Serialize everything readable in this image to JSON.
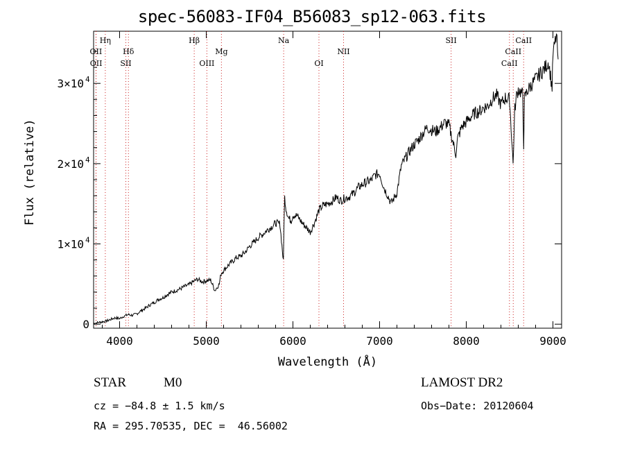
{
  "chart_data": {
    "type": "line",
    "title": "spec-56083-IF04_B56083_sp12-063.fits",
    "xlabel": "Wavelength (Å)",
    "ylabel": "Flux (relative)",
    "xlim": [
      3700,
      9100
    ],
    "ylim": [
      -500,
      36500
    ],
    "x_ticks": [
      4000,
      5000,
      6000,
      7000,
      8000,
      9000
    ],
    "x_tick_labels": [
      "4000",
      "5000",
      "6000",
      "7000",
      "8000",
      "9000"
    ],
    "y_ticks": [
      0,
      10000,
      20000,
      30000
    ],
    "y_tick_labels": [
      {
        "mant": "0",
        "exp": ""
      },
      {
        "mant": "1×10",
        "exp": "4"
      },
      {
        "mant": "2×10",
        "exp": "4"
      },
      {
        "mant": "3×10",
        "exp": "4"
      }
    ],
    "grid": false,
    "series": [
      {
        "x": [
          3700,
          3750,
          3800,
          3850,
          3900,
          3950,
          4000,
          4050,
          4100,
          4150,
          4200,
          4250,
          4300,
          4350,
          4400,
          4450,
          4500,
          4550,
          4600,
          4650,
          4700,
          4750,
          4800,
          4850,
          4900,
          4950,
          5000,
          5050,
          5100,
          5150,
          5170,
          5200,
          5250,
          5300,
          5350,
          5400,
          5450,
          5500,
          5550,
          5600,
          5650,
          5700,
          5750,
          5800,
          5850,
          5890,
          5895,
          5905,
          5920,
          5950,
          5980,
          6000,
          6050,
          6100,
          6150,
          6200,
          6250,
          6300,
          6350,
          6400,
          6450,
          6500,
          6550,
          6600,
          6650,
          6700,
          6750,
          6800,
          6850,
          6900,
          6950,
          7000,
          7050,
          7100,
          7130,
          7150,
          7200,
          7250,
          7300,
          7350,
          7400,
          7450,
          7500,
          7550,
          7600,
          7650,
          7700,
          7750,
          7800,
          7850,
          7880,
          7900,
          7950,
          8000,
          8050,
          8100,
          8150,
          8200,
          8250,
          8300,
          8350,
          8400,
          8450,
          8500,
          8540,
          8560,
          8580,
          8600,
          8650,
          8662,
          8670,
          8700,
          8750,
          8800,
          8850,
          8900,
          8950,
          8990,
          9000,
          9020,
          9040,
          9060
        ],
        "y": [
          100,
          200,
          300,
          400,
          600,
          800,
          700,
          1000,
          1200,
          1100,
          1300,
          1700,
          2000,
          2400,
          2700,
          3100,
          3300,
          3700,
          4000,
          4200,
          4400,
          4700,
          4900,
          5300,
          5600,
          5300,
          5400,
          5500,
          4200,
          5000,
          6300,
          6700,
          7300,
          7800,
          8300,
          8500,
          9000,
          9700,
          10200,
          10800,
          11200,
          11700,
          12100,
          12600,
          12500,
          7800,
          11800,
          15800,
          14400,
          13200,
          12900,
          13600,
          13500,
          12700,
          12100,
          11500,
          12700,
          14200,
          14800,
          15000,
          15300,
          15800,
          15400,
          15700,
          15900,
          16300,
          17000,
          17400,
          17700,
          17900,
          18600,
          18800,
          17000,
          15900,
          15100,
          15400,
          16400,
          19700,
          20700,
          21600,
          22400,
          23000,
          23800,
          24500,
          24200,
          24000,
          24500,
          25100,
          24800,
          22500,
          21200,
          23100,
          24600,
          25200,
          25800,
          26300,
          26500,
          27000,
          27200,
          28100,
          28500,
          27400,
          28200,
          28000,
          20000,
          26800,
          28400,
          29300,
          28600,
          22400,
          28000,
          29000,
          29800,
          30500,
          31200,
          31800,
          32700,
          29500,
          33500,
          34800,
          36000,
          33000
        ]
      }
    ],
    "lines": [
      {
        "label": "Hη",
        "x": 3835,
        "row": 1
      },
      {
        "label": "OII",
        "x": 3727,
        "row": 2
      },
      {
        "label": "OII",
        "x": 3729,
        "row": 3
      },
      {
        "label": "Hδ",
        "x": 4102,
        "row": 2
      },
      {
        "label": "SII",
        "x": 4072,
        "row": 3
      },
      {
        "label": "Hβ",
        "x": 4861,
        "row": 1
      },
      {
        "label": "OIII",
        "x": 5007,
        "row": 3
      },
      {
        "label": "Mg",
        "x": 5175,
        "row": 2
      },
      {
        "label": "Na",
        "x": 5893,
        "row": 1
      },
      {
        "label": "OI",
        "x": 6300,
        "row": 3
      },
      {
        "label": "NII",
        "x": 6584,
        "row": 2
      },
      {
        "label": "SII",
        "x": 7825,
        "row": 1
      },
      {
        "label": "CaII",
        "x": 8662,
        "row": 1
      },
      {
        "label": "CaII",
        "x": 8542,
        "row": 2
      },
      {
        "label": "CaII",
        "x": 8498,
        "row": 3
      }
    ]
  },
  "info": {
    "objclass": "STAR",
    "subclass": "M0",
    "survey": "LAMOST DR2",
    "cz": "cz = −84.8 ± 1.5 km/s",
    "obsdate": "Obs−Date: 20120604",
    "radec": "RA = 295.70535, DEC =  46.56002"
  },
  "colors": {
    "line_marker": "#cc2222",
    "spectrum": "#000000"
  }
}
